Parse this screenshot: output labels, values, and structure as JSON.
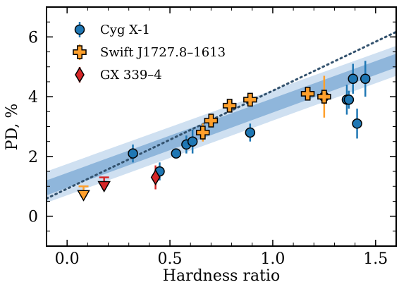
{
  "chart_data": {
    "type": "scatter",
    "xlabel": "Hardness ratio",
    "ylabel": "PD, %",
    "xlim": [
      -0.1,
      1.6
    ],
    "ylim": [
      -1.0,
      7.0
    ],
    "xticks": [
      0.0,
      0.5,
      1.0,
      1.5
    ],
    "xtick_labels": [
      "0.0",
      "0.5",
      "1.0",
      "1.5"
    ],
    "yticks": [
      0,
      2,
      4,
      6
    ],
    "ytick_labels": [
      "0",
      "2",
      "4",
      "6"
    ],
    "grid": false,
    "legend_position": "top-left",
    "fit": {
      "style": "dotted",
      "intercept": 0.92,
      "slope": 3.28,
      "band_inner": {
        "left": [
          0.7,
          1.2
        ],
        "right": [
          4.98,
          5.44
        ]
      },
      "band_outer": {
        "left": [
          0.45,
          1.5
        ],
        "right": [
          4.7,
          5.7
        ]
      }
    },
    "colors": {
      "cyg": "#1f77b4",
      "swift": "#ff9f2b",
      "gx": "#d62728",
      "fit_line": "#33526e",
      "band_inner": "#8fb6db",
      "band_outer": "#cfe0f1"
    },
    "series": [
      {
        "name": "Cyg X-1",
        "marker": "circle",
        "points": [
          {
            "x": 0.32,
            "y": 2.1,
            "err": 0.3
          },
          {
            "x": 0.45,
            "y": 1.5,
            "err": 0.3
          },
          {
            "x": 0.53,
            "y": 2.1,
            "err": 0.0
          },
          {
            "x": 0.58,
            "y": 2.4,
            "err": 0.3
          },
          {
            "x": 0.61,
            "y": 2.5,
            "err": 0.4
          },
          {
            "x": 0.89,
            "y": 2.8,
            "err": 0.3
          },
          {
            "x": 1.25,
            "y": 4.0,
            "err": 0.0
          },
          {
            "x": 1.36,
            "y": 3.9,
            "err": 0.5
          },
          {
            "x": 1.37,
            "y": 3.9,
            "err": 0.3
          },
          {
            "x": 1.39,
            "y": 4.6,
            "err": 0.5
          },
          {
            "x": 1.41,
            "y": 3.1,
            "err": 0.5
          },
          {
            "x": 1.45,
            "y": 4.6,
            "err": 0.6
          }
        ]
      },
      {
        "name": "Swift J1727.8–1613",
        "marker": "plus",
        "points": [
          {
            "x": 0.66,
            "y": 2.8,
            "err": 0.3
          },
          {
            "x": 0.7,
            "y": 3.2,
            "err": 0.2
          },
          {
            "x": 0.79,
            "y": 3.7,
            "err": 0.2
          },
          {
            "x": 0.89,
            "y": 3.9,
            "err": 0.2
          },
          {
            "x": 1.17,
            "y": 4.1,
            "err": 0.2
          },
          {
            "x": 1.25,
            "y": 4.0,
            "err": 0.7
          }
        ],
        "upper_limits": [
          {
            "x": 0.08,
            "y": 1.0
          }
        ]
      },
      {
        "name": "GX 339–4",
        "marker": "diamond",
        "points": [
          {
            "x": 0.43,
            "y": 1.3,
            "err": 0.4
          }
        ],
        "upper_limits": [
          {
            "x": 0.18,
            "y": 1.3
          }
        ]
      }
    ]
  }
}
